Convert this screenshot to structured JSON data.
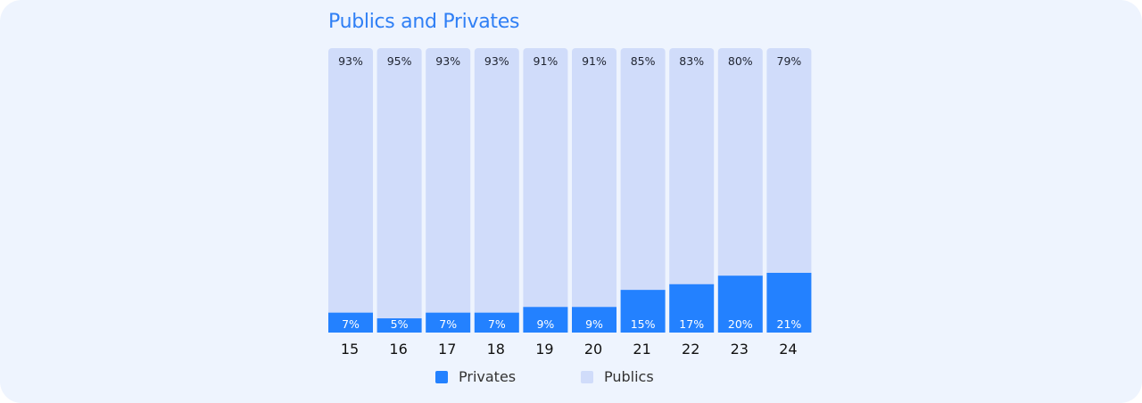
{
  "chart_data": {
    "type": "bar",
    "stacked": true,
    "title": "Publics and Privates",
    "categories": [
      "15",
      "16",
      "17",
      "18",
      "19",
      "20",
      "21",
      "22",
      "23",
      "24"
    ],
    "series": [
      {
        "name": "Privates",
        "color": "#2381ff",
        "values": [
          7,
          5,
          7,
          7,
          9,
          9,
          15,
          17,
          20,
          21
        ]
      },
      {
        "name": "Publics",
        "color": "#d0dcfa",
        "values": [
          93,
          95,
          93,
          93,
          91,
          91,
          85,
          83,
          80,
          79
        ]
      }
    ],
    "value_suffix": "%",
    "ylim": [
      0,
      100
    ],
    "legend_position": "bottom"
  }
}
